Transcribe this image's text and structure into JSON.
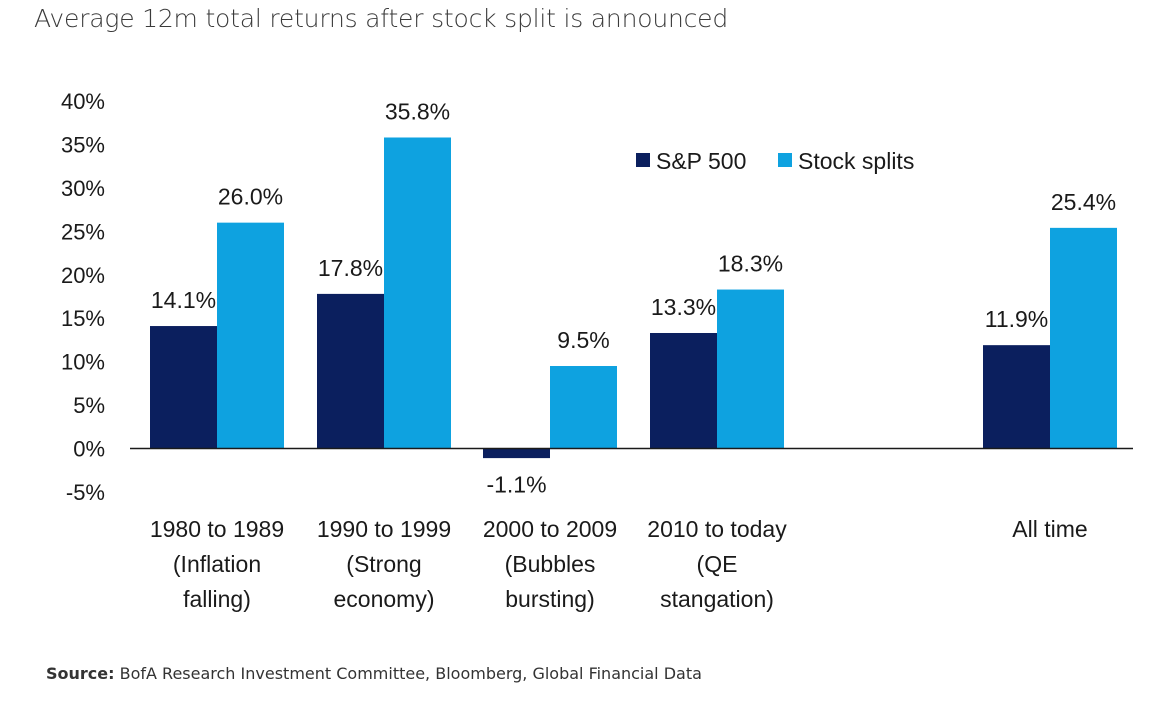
{
  "chart_data": {
    "type": "bar",
    "title": "Average 12m total returns after stock split is announced",
    "categories": [
      [
        "1980 to 1989",
        "(Inflation",
        "falling)"
      ],
      [
        "1990 to 1999",
        "(Strong",
        "economy)"
      ],
      [
        "2000 to 2009",
        "(Bubbles",
        "bursting)"
      ],
      [
        "2010 to today",
        "(QE",
        "stangation)"
      ],
      [
        ""
      ],
      [
        "All time"
      ]
    ],
    "series": [
      {
        "name": "S&P 500",
        "color": "#0b1f5e",
        "values": [
          14.1,
          17.8,
          -1.1,
          13.3,
          null,
          11.9
        ],
        "labels": [
          "14.1%",
          "17.8%",
          "-1.1%",
          "13.3%",
          "",
          "11.9%"
        ]
      },
      {
        "name": "Stock splits",
        "color": "#0ea2e0",
        "values": [
          26.0,
          35.8,
          9.5,
          18.3,
          null,
          25.4
        ],
        "labels": [
          "26.0%",
          "35.8%",
          "9.5%",
          "18.3%",
          "",
          "25.4%"
        ]
      }
    ],
    "ylim": [
      -5,
      40
    ],
    "yticks": [
      40,
      35,
      30,
      25,
      20,
      15,
      10,
      5,
      0,
      -5
    ],
    "ytick_labels": [
      "40%",
      "35%",
      "30%",
      "25%",
      "20%",
      "15%",
      "10%",
      "5%",
      "0%",
      "-5%"
    ],
    "grid": false,
    "legend": "top-center"
  },
  "source": {
    "label": "Source:",
    "text": "BofA Research Investment Committee, Bloomberg, Global Financial Data"
  }
}
